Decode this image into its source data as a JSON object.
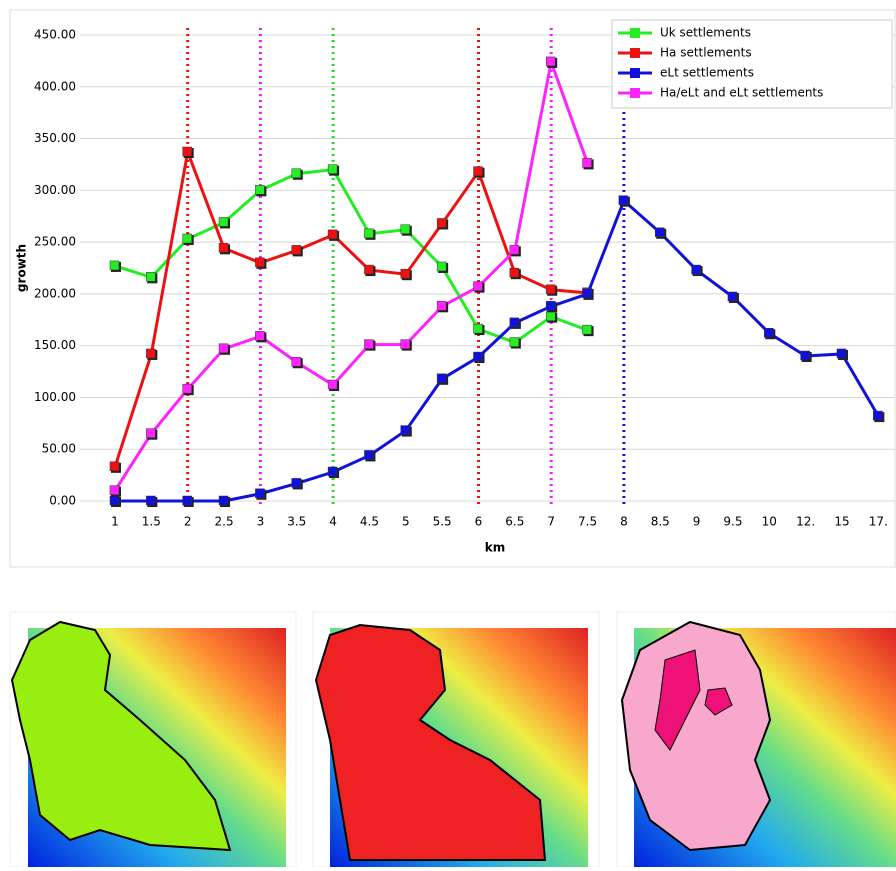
{
  "chart_data": {
    "type": "line",
    "categories": [
      "1",
      "1.5",
      "2",
      "2.5",
      "3",
      "3.5",
      "4",
      "4.5",
      "5",
      "5.5",
      "6",
      "6.5",
      "7",
      "7.5",
      "8",
      "8.5",
      "9",
      "9.5",
      "10",
      "12.",
      "15",
      "17."
    ],
    "series": [
      {
        "name": "Uk settlements",
        "color": "#22ee22",
        "values": [
          227,
          216,
          253,
          269,
          300,
          316,
          320,
          258,
          262,
          226,
          166,
          153,
          178,
          165,
          null,
          null,
          null,
          null,
          null,
          null,
          null,
          null
        ]
      },
      {
        "name": "Ha settlements",
        "color": "#ee1111",
        "values": [
          33,
          142,
          337,
          244,
          230,
          242,
          257,
          223,
          219,
          268,
          318,
          220,
          204,
          201,
          null,
          null,
          null,
          null,
          null,
          null,
          null,
          null
        ]
      },
      {
        "name": "eLt settlements",
        "color": "#1111dd",
        "values": [
          0,
          0,
          0,
          0,
          7,
          17,
          28,
          44,
          68,
          118,
          139,
          172,
          188,
          200,
          290,
          259,
          223,
          197,
          162,
          140,
          142,
          82
        ]
      },
      {
        "name": "Ha/eLt and eLt settlements",
        "color": "#ff22ff",
        "values": [
          10,
          65,
          108,
          147,
          159,
          134,
          112,
          151,
          151,
          188,
          207,
          242,
          424,
          326,
          null,
          null,
          null,
          null,
          null,
          null,
          null,
          null
        ]
      }
    ],
    "vlines": [
      {
        "at": "2",
        "color": "#ee1111"
      },
      {
        "at": "3",
        "color": "#ee22ee"
      },
      {
        "at": "4",
        "color": "#22dd22"
      },
      {
        "at": "6",
        "color": "#ee1111"
      },
      {
        "at": "7",
        "color": "#ee22ee"
      },
      {
        "at": "8",
        "color": "#1111dd"
      }
    ],
    "ylim": [
      0,
      450
    ],
    "yticks": [
      {
        "value": 0,
        "label": "0.00"
      },
      {
        "value": 50,
        "label": "50.00"
      },
      {
        "value": 100,
        "label": "100.00"
      },
      {
        "value": 150,
        "label": "150.00"
      },
      {
        "value": 200,
        "label": "200.00"
      },
      {
        "value": 250,
        "label": "250.00"
      },
      {
        "value": 300,
        "label": "300.00"
      },
      {
        "value": 350,
        "label": "350.00"
      },
      {
        "value": 400,
        "label": "400.00"
      },
      {
        "value": 450,
        "label": "450.00"
      }
    ],
    "xlabel": "km",
    "ylabel": "growth",
    "grid": true,
    "legend": "top-right"
  }
}
